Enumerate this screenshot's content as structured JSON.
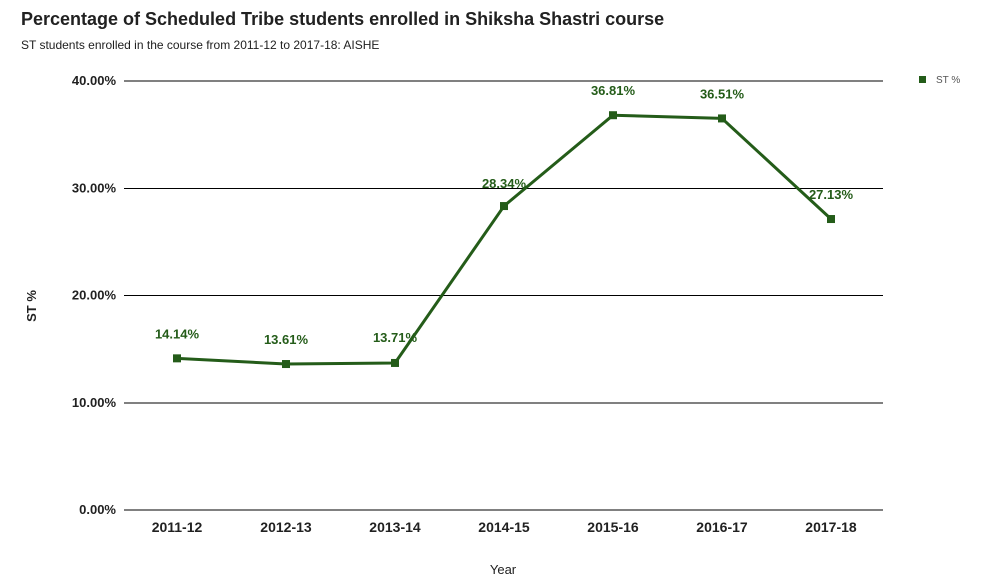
{
  "title": "Percentage of Scheduled Tribe students enrolled in Shiksha Shastri course",
  "subtitle": "ST students enrolled in the course from 2011-12 to 2017-18: AISHE",
  "colors": {
    "series": "#245c19",
    "grid": "#000000",
    "text": "#212121"
  },
  "chart_data": {
    "type": "line",
    "title": "Percentage of Scheduled Tribe students enrolled in Shiksha Shastri course",
    "subtitle": "ST students enrolled in the course from 2011-12 to 2017-18: AISHE",
    "xlabel": "Year",
    "ylabel": "ST %",
    "categories": [
      "2011-12",
      "2012-13",
      "2013-14",
      "2014-15",
      "2015-16",
      "2016-17",
      "2017-18"
    ],
    "series": [
      {
        "name": "ST %",
        "values": [
          14.14,
          13.61,
          13.71,
          28.34,
          36.81,
          36.51,
          27.13
        ],
        "labels": [
          "14.14%",
          "13.61%",
          "13.71%",
          "28.34%",
          "36.81%",
          "36.51%",
          "27.13%"
        ]
      }
    ],
    "ylim": [
      0,
      40
    ],
    "yticks": [
      0,
      10,
      20,
      30,
      40
    ],
    "ytick_labels": [
      "0.00%",
      "10.00%",
      "20.00%",
      "30.00%",
      "40.00%"
    ],
    "grid": true,
    "legend_position": "top-right"
  }
}
